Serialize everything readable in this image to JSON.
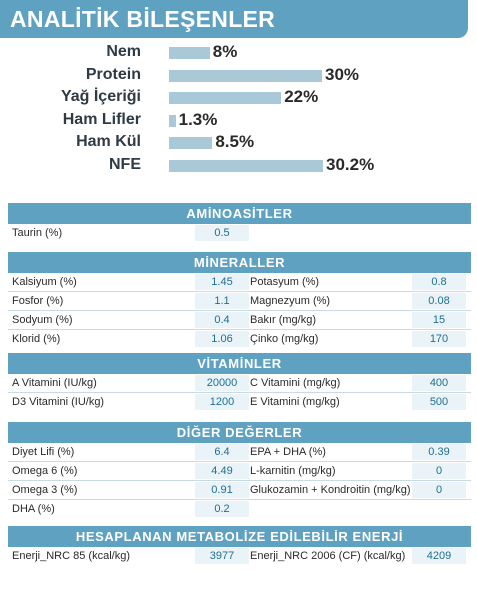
{
  "header": {
    "title": "ANALİTİK BİLEŞENLER"
  },
  "analytics": [
    {
      "label": "Nem",
      "value_text": "8%",
      "percent": 8
    },
    {
      "label": "Protein",
      "value_text": "30%",
      "percent": 30
    },
    {
      "label": "Yağ İçeriği",
      "value_text": "22%",
      "percent": 22
    },
    {
      "label": "Ham Lifler",
      "value_text": "1.3%",
      "percent": 1.3
    },
    {
      "label": "Ham Kül",
      "value_text": "8.5%",
      "percent": 8.5
    },
    {
      "label": "NFE",
      "value_text": "30.2%",
      "percent": 30.2
    }
  ],
  "aminoasitler": {
    "title": "AMİNOASİTLER",
    "rows": [
      {
        "label1": "Taurin (%)",
        "value1": "0.5"
      }
    ]
  },
  "mineraller": {
    "title": "MİNERALLER",
    "rows": [
      {
        "label1": "Kalsiyum (%)",
        "value1": "1.45",
        "label2": "Potasyum (%)",
        "value2": "0.8"
      },
      {
        "label1": "Fosfor (%)",
        "value1": "1.1",
        "label2": "Magnezyum (%)",
        "value2": "0.08"
      },
      {
        "label1": "Sodyum (%)",
        "value1": "0.4",
        "label2": "Bakır (mg/kg)",
        "value2": "15"
      },
      {
        "label1": "Klorid (%)",
        "value1": "1.06",
        "label2": "Çinko (mg/kg)",
        "value2": "170"
      }
    ]
  },
  "vitaminler": {
    "title": "VİTAMİNLER",
    "rows": [
      {
        "label1": "A Vitamini (IU/kg)",
        "value1": "20000",
        "label2": "C Vitamini (mg/kg)",
        "value2": "400"
      },
      {
        "label1": "D3 Vitamini (IU/kg)",
        "value1": "1200",
        "label2": "E Vitamini (mg/kg)",
        "value2": "500"
      }
    ]
  },
  "diger": {
    "title": "DİĞER DEĞERLER",
    "rows": [
      {
        "label1": "Diyet Lifi (%)",
        "value1": "6.4",
        "label2": "EPA + DHA (%)",
        "value2": "0.39"
      },
      {
        "label1": "Omega 6 (%)",
        "value1": "4.49",
        "label2": "L-karnitin (mg/kg)",
        "value2": "0"
      },
      {
        "label1": "Omega 3 (%)",
        "value1": "0.91",
        "label2": "Glukozamin + Kondroitin (mg/kg)",
        "value2": "0"
      },
      {
        "label1": "DHA (%)",
        "value1": "0.2"
      }
    ]
  },
  "enerji": {
    "title": "HESAPLANAN METABOLİZE EDİLEBİLİR ENERJİ",
    "rows": [
      {
        "label1": "Enerji_NRC 85 (kcal/kg)",
        "value1": "3977",
        "label2": "Enerji_NRC 2006 (CF) (kcal/kg)",
        "value2": "4209"
      }
    ]
  },
  "colors": {
    "accent": "#5fa1c1",
    "bar": "#a9c9d8",
    "value_text": "#1f6e93"
  }
}
